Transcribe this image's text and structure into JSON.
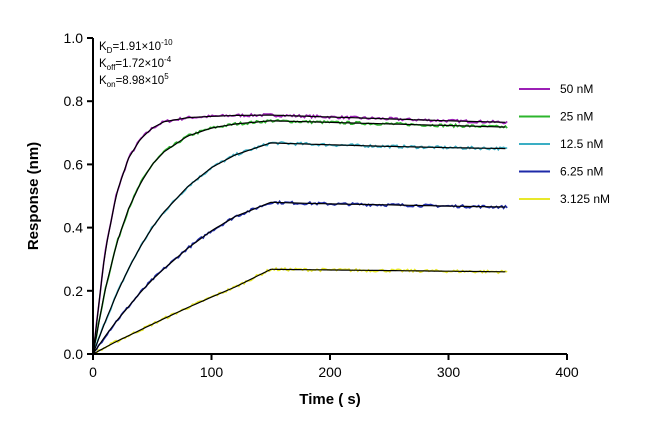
{
  "chart_data": {
    "type": "line",
    "title": "",
    "xlabel": "Time ( s)",
    "ylabel": "Response (nm)",
    "xlim": [
      0,
      400
    ],
    "ylim": [
      0,
      1.0
    ],
    "x_ticks": [
      "0",
      "100",
      "200",
      "300",
      "400"
    ],
    "y_ticks": [
      "0.0",
      "0.2",
      "0.4",
      "0.6",
      "0.8",
      "1.0"
    ],
    "grid": false,
    "legend_position": "right",
    "annotations": [
      {
        "symbol": "K",
        "sub": "D",
        "value": "=1.91×10",
        "exp": "-10"
      },
      {
        "symbol": "K",
        "sub": "off",
        "value": "=1.72×10",
        "exp": "-4"
      },
      {
        "symbol": "K",
        "sub": "on",
        "value": "=8.98×10",
        "exp": "5"
      }
    ],
    "association_end": 150,
    "x_end": 350,
    "series": [
      {
        "name": "50 nM",
        "color": "#9b1fb5",
        "x": [
          0,
          10,
          20,
          30,
          40,
          50,
          60,
          80,
          100,
          120,
          150,
          200,
          250,
          300,
          350
        ],
        "y": [
          0.0,
          0.32,
          0.51,
          0.62,
          0.68,
          0.715,
          0.735,
          0.748,
          0.752,
          0.755,
          0.756,
          0.75,
          0.744,
          0.738,
          0.733
        ]
      },
      {
        "name": "25 nM",
        "color": "#2cb52c",
        "x": [
          0,
          10,
          20,
          30,
          40,
          50,
          60,
          80,
          100,
          120,
          150,
          200,
          250,
          300,
          350
        ],
        "y": [
          0.0,
          0.2,
          0.35,
          0.46,
          0.54,
          0.6,
          0.64,
          0.69,
          0.715,
          0.728,
          0.738,
          0.733,
          0.728,
          0.723,
          0.718
        ]
      },
      {
        "name": "12.5 nM",
        "color": "#3aaec4",
        "x": [
          0,
          10,
          20,
          30,
          40,
          50,
          60,
          80,
          100,
          120,
          150,
          200,
          250,
          300,
          350
        ],
        "y": [
          0.0,
          0.1,
          0.19,
          0.27,
          0.34,
          0.4,
          0.45,
          0.53,
          0.59,
          0.63,
          0.668,
          0.662,
          0.657,
          0.653,
          0.65
        ]
      },
      {
        "name": "6.25 nM",
        "color": "#1e2aa8",
        "x": [
          0,
          10,
          20,
          30,
          40,
          50,
          60,
          80,
          100,
          120,
          150,
          200,
          250,
          300,
          350
        ],
        "y": [
          0.0,
          0.055,
          0.105,
          0.15,
          0.195,
          0.235,
          0.27,
          0.335,
          0.39,
          0.435,
          0.48,
          0.475,
          0.472,
          0.468,
          0.465
        ]
      },
      {
        "name": "3.125 nM",
        "color": "#e8e82a",
        "x": [
          0,
          10,
          20,
          30,
          40,
          50,
          60,
          80,
          100,
          120,
          150,
          200,
          250,
          300,
          350
        ],
        "y": [
          0.0,
          0.02,
          0.04,
          0.058,
          0.076,
          0.094,
          0.112,
          0.147,
          0.18,
          0.212,
          0.268,
          0.266,
          0.264,
          0.262,
          0.26
        ]
      }
    ]
  }
}
